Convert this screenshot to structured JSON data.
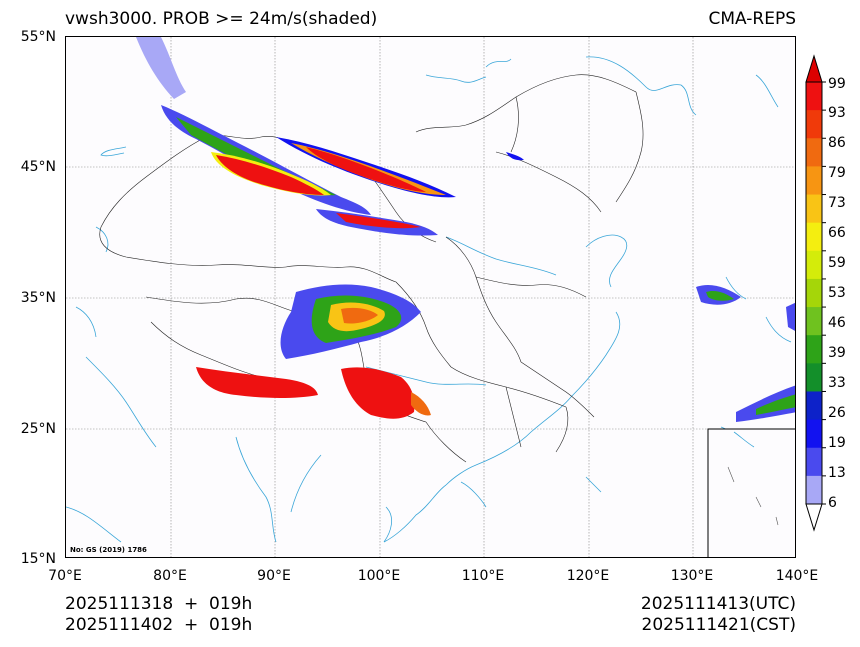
{
  "title": {
    "left": "vwsh3000. PROB >= 24m/s(shaded)",
    "right": "CMA-REPS"
  },
  "axes": {
    "lat_labels": [
      "55°N",
      "45°N",
      "35°N",
      "25°N",
      "15°N"
    ],
    "lon_labels": [
      "70°E",
      "80°E",
      "90°E",
      "100°E",
      "110°E",
      "120°E",
      "130°E",
      "140°E"
    ]
  },
  "colorbar": {
    "levels": [
      "99",
      "93",
      "86",
      "79",
      "73",
      "66",
      "59",
      "53",
      "46",
      "39",
      "33",
      "26",
      "19",
      "13",
      "6"
    ],
    "colors": [
      "#ee1111",
      "#f03a0a",
      "#f06a10",
      "#f79512",
      "#f9c415",
      "#f4ee10",
      "#d4ec0a",
      "#a5d609",
      "#6fc21f",
      "#2ea318",
      "#138f2a",
      "#0d22c9",
      "#1212f0",
      "#4a4aee",
      "#a8a8f6"
    ],
    "top_color": "#dd0000",
    "bottom_color": "#ffffff"
  },
  "map_note": "No: GS (2019) 1786",
  "footer": {
    "init_utc": "2025111318  +  019h",
    "init_cst": "2025111402  +  019h",
    "valid_utc": "2025111413(UTC)",
    "valid_cst": "2025111421(CST)"
  }
}
